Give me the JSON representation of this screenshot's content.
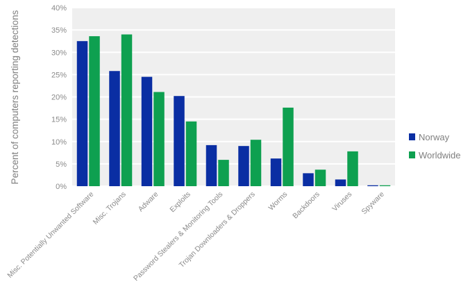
{
  "chart_data": {
    "type": "bar",
    "ylabel": "Percent of computers reporting detections",
    "ylim": [
      0,
      40
    ],
    "yticks": [
      "0%",
      "5%",
      "10%",
      "15%",
      "20%",
      "25%",
      "30%",
      "35%",
      "40%"
    ],
    "grid": true,
    "legend_position": "right",
    "categories": [
      "Misc. Potentially Unwanted Software",
      "Misc. Trojans",
      "Adware",
      "Exploits",
      "Password Stealers & Monitoring Tools",
      "Trojan Downloaders & Droppers",
      "Worms",
      "Backdoors",
      "Viruses",
      "Spyware"
    ],
    "series": [
      {
        "name": "Norway",
        "color": "#0a2ea3",
        "values": [
          32.5,
          25.8,
          24.5,
          20.2,
          9.2,
          9.0,
          6.2,
          2.9,
          1.5,
          0.2
        ]
      },
      {
        "name": "Worldwide",
        "color": "#0ea050",
        "values": [
          33.6,
          34.0,
          21.1,
          14.5,
          5.9,
          10.4,
          17.6,
          3.7,
          7.8,
          0.2
        ]
      }
    ]
  }
}
